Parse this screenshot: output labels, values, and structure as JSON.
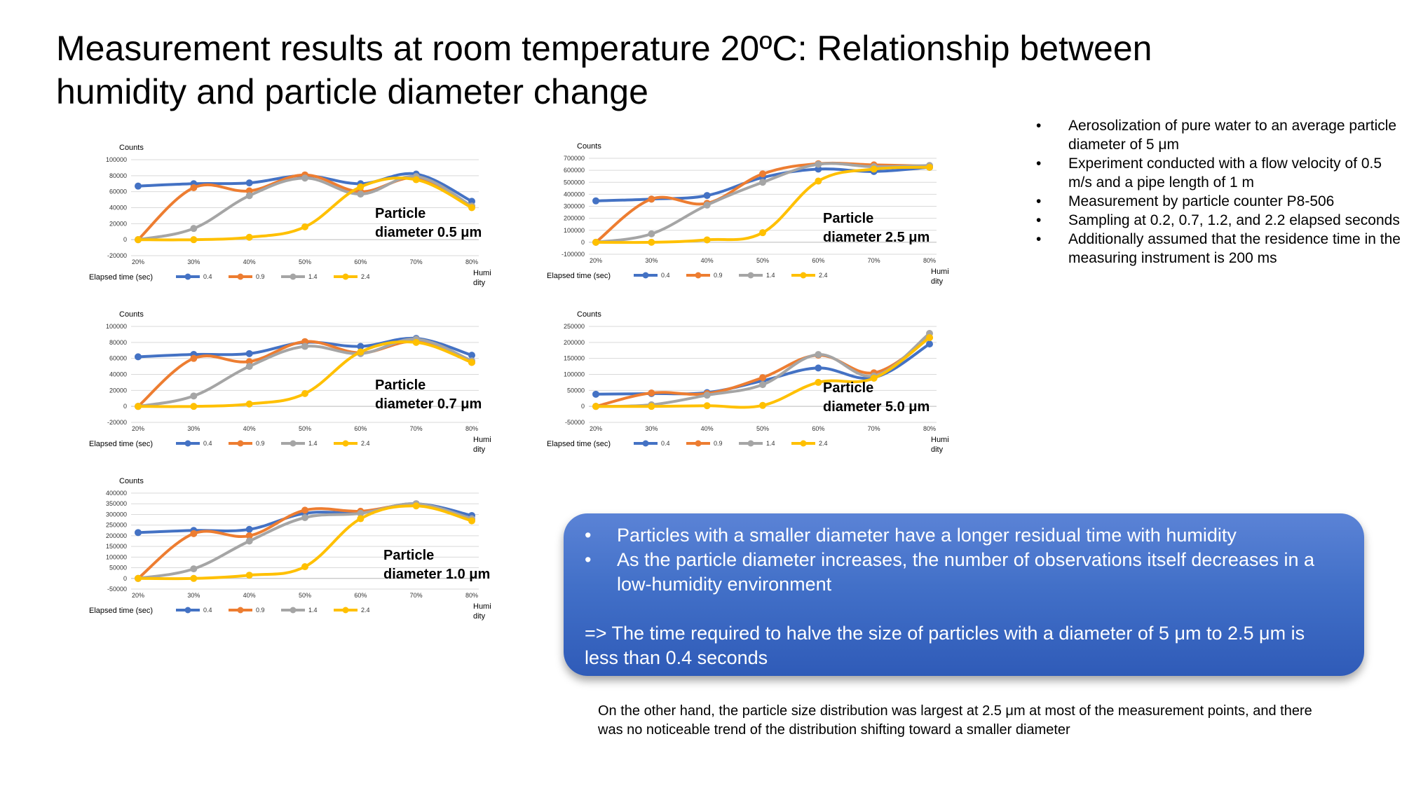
{
  "slide": {
    "title": "Measurement results at room temperature 20ºC: Relationship between humidity and particle diameter change"
  },
  "bullets": [
    "Aerosolization of pure water to an average particle diameter of 5 μm",
    "Experiment conducted with a flow velocity of 0.5 m/s and a pipe length of 1 m",
    "Measurement by particle counter P8-506",
    "Sampling at 0.2, 0.7, 1.2, and 2.2 elapsed seconds",
    "Additionally assumed that the residence time in the measuring instrument is 200 ms"
  ],
  "conclusion": {
    "points": [
      "Particles with a smaller diameter have a longer residual time with humidity",
      "As the particle diameter increases, the number of observations itself decreases in a low-humidity environment"
    ],
    "result": "=> The time required to halve the size of particles with a diameter of 5 μm to 2.5 μm is less than 0.4 seconds"
  },
  "footnote": "On the other hand, the particle size distribution was largest at 2.5 μm at most of the measurement points, and there was no noticeable trend of the distribution shifting toward a smaller diameter",
  "colors": {
    "series_0_4": "#4472c4",
    "series_0_9": "#ed7d31",
    "series_1_4": "#a5a5a5",
    "series_2_4": "#ffc000",
    "gridline": "#d9d9d9",
    "conclusion_box": "#4270c8"
  },
  "chart_data": [
    {
      "type": "line",
      "title": "",
      "annotation": "Particle diameter 0.5 μm",
      "ylabel": "Counts",
      "xlabel": "Humidity",
      "legend_title": "Elapsed time (sec)",
      "legend_position": "bottom",
      "grid": true,
      "ylim": [
        -20000,
        100000
      ],
      "yticks": [
        -20000,
        0,
        20000,
        40000,
        60000,
        80000,
        100000
      ],
      "ytick_labels": [
        "-20000",
        "0",
        "20000",
        "40000",
        "60000",
        "80000",
        "100000"
      ],
      "categories": [
        "20%",
        "30%",
        "40%",
        "50%",
        "60%",
        "70%",
        "80%"
      ],
      "series": [
        {
          "name": "0.4",
          "values": [
            67000,
            70000,
            71000,
            80000,
            70000,
            82000,
            48000
          ]
        },
        {
          "name": "0.9",
          "values": [
            0,
            65000,
            61000,
            81000,
            60000,
            77000,
            42000
          ]
        },
        {
          "name": "1.4",
          "values": [
            0,
            14000,
            55000,
            77000,
            57000,
            79000,
            42000
          ]
        },
        {
          "name": "2.4",
          "values": [
            0,
            0,
            3000,
            16000,
            66000,
            75000,
            40000
          ]
        }
      ]
    },
    {
      "type": "line",
      "title": "",
      "annotation": "Particle diameter 2.5 μm",
      "ylabel": "Counts",
      "xlabel": "Humidity",
      "legend_title": "Elapsed time (sec)",
      "legend_position": "bottom",
      "grid": true,
      "ylim": [
        -100000,
        700000
      ],
      "yticks": [
        -100000,
        0,
        100000,
        200000,
        300000,
        400000,
        500000,
        600000,
        700000
      ],
      "ytick_labels": [
        "-100000",
        "0",
        "100000",
        "200000",
        "300000",
        "400000",
        "500000",
        "600000",
        "700000"
      ],
      "categories": [
        "20%",
        "30%",
        "40%",
        "50%",
        "60%",
        "70%",
        "80%"
      ],
      "series": [
        {
          "name": "0.4",
          "values": [
            345000,
            360000,
            390000,
            540000,
            610000,
            590000,
            625000
          ]
        },
        {
          "name": "0.9",
          "values": [
            0,
            360000,
            325000,
            570000,
            655000,
            645000,
            635000
          ]
        },
        {
          "name": "1.4",
          "values": [
            0,
            70000,
            310000,
            500000,
            650000,
            630000,
            640000
          ]
        },
        {
          "name": "2.4",
          "values": [
            0,
            0,
            20000,
            80000,
            510000,
            610000,
            625000
          ]
        }
      ]
    },
    {
      "type": "line",
      "title": "",
      "annotation": "Particle diameter 0.7 μm",
      "ylabel": "Counts",
      "xlabel": "Humidity",
      "legend_title": "Elapsed time (sec)",
      "legend_position": "bottom",
      "grid": true,
      "ylim": [
        -20000,
        100000
      ],
      "yticks": [
        -20000,
        0,
        20000,
        40000,
        60000,
        80000,
        100000
      ],
      "ytick_labels": [
        "-20000",
        "0",
        "20000",
        "40000",
        "60000",
        "80000",
        "100000"
      ],
      "categories": [
        "20%",
        "30%",
        "40%",
        "50%",
        "60%",
        "70%",
        "80%"
      ],
      "series": [
        {
          "name": "0.4",
          "values": [
            62000,
            65000,
            66000,
            80000,
            75000,
            85000,
            64000
          ]
        },
        {
          "name": "0.9",
          "values": [
            0,
            60000,
            56000,
            81000,
            67000,
            81000,
            55000
          ]
        },
        {
          "name": "1.4",
          "values": [
            0,
            13000,
            50000,
            75000,
            66000,
            84000,
            57000
          ]
        },
        {
          "name": "2.4",
          "values": [
            0,
            0,
            3000,
            16000,
            68000,
            80000,
            55000
          ]
        }
      ]
    },
    {
      "type": "line",
      "title": "",
      "annotation": "Particle diameter 5.0 μm",
      "ylabel": "Counts",
      "xlabel": "Humidity",
      "legend_title": "Elapsed time (sec)",
      "legend_position": "bottom",
      "grid": true,
      "ylim": [
        -50000,
        250000
      ],
      "yticks": [
        -50000,
        0,
        50000,
        100000,
        150000,
        200000,
        250000
      ],
      "ytick_labels": [
        "-50000",
        "0",
        "50000",
        "100000",
        "150000",
        "200000",
        "250000"
      ],
      "categories": [
        "20%",
        "30%",
        "40%",
        "50%",
        "60%",
        "70%",
        "80%"
      ],
      "series": [
        {
          "name": "0.4",
          "values": [
            38000,
            40000,
            43000,
            80000,
            120000,
            90000,
            195000
          ]
        },
        {
          "name": "0.9",
          "values": [
            0,
            42000,
            40000,
            90000,
            160000,
            105000,
            215000
          ]
        },
        {
          "name": "1.4",
          "values": [
            0,
            5000,
            35000,
            68000,
            162000,
            95000,
            228000
          ]
        },
        {
          "name": "2.4",
          "values": [
            0,
            0,
            2000,
            3000,
            75000,
            88000,
            215000
          ]
        }
      ]
    },
    {
      "type": "line",
      "title": "",
      "annotation": "Particle diameter 1.0 μm",
      "ylabel": "Counts",
      "xlabel": "Humidity",
      "legend_title": "Elapsed time (sec)",
      "legend_position": "bottom",
      "grid": true,
      "ylim": [
        -50000,
        400000
      ],
      "yticks": [
        -50000,
        0,
        50000,
        100000,
        150000,
        200000,
        250000,
        300000,
        350000,
        400000
      ],
      "ytick_labels": [
        "-50000",
        "0",
        "50000",
        "100000",
        "150000",
        "200000",
        "250000",
        "300000",
        "350000",
        "400000"
      ],
      "categories": [
        "20%",
        "30%",
        "40%",
        "50%",
        "60%",
        "70%",
        "80%"
      ],
      "series": [
        {
          "name": "0.4",
          "values": [
            215000,
            225000,
            230000,
            305000,
            310000,
            350000,
            295000
          ]
        },
        {
          "name": "0.9",
          "values": [
            0,
            210000,
            200000,
            320000,
            315000,
            345000,
            275000
          ]
        },
        {
          "name": "1.4",
          "values": [
            0,
            45000,
            175000,
            285000,
            305000,
            350000,
            280000
          ]
        },
        {
          "name": "2.4",
          "values": [
            0,
            0,
            15000,
            55000,
            280000,
            340000,
            270000
          ]
        }
      ]
    }
  ]
}
